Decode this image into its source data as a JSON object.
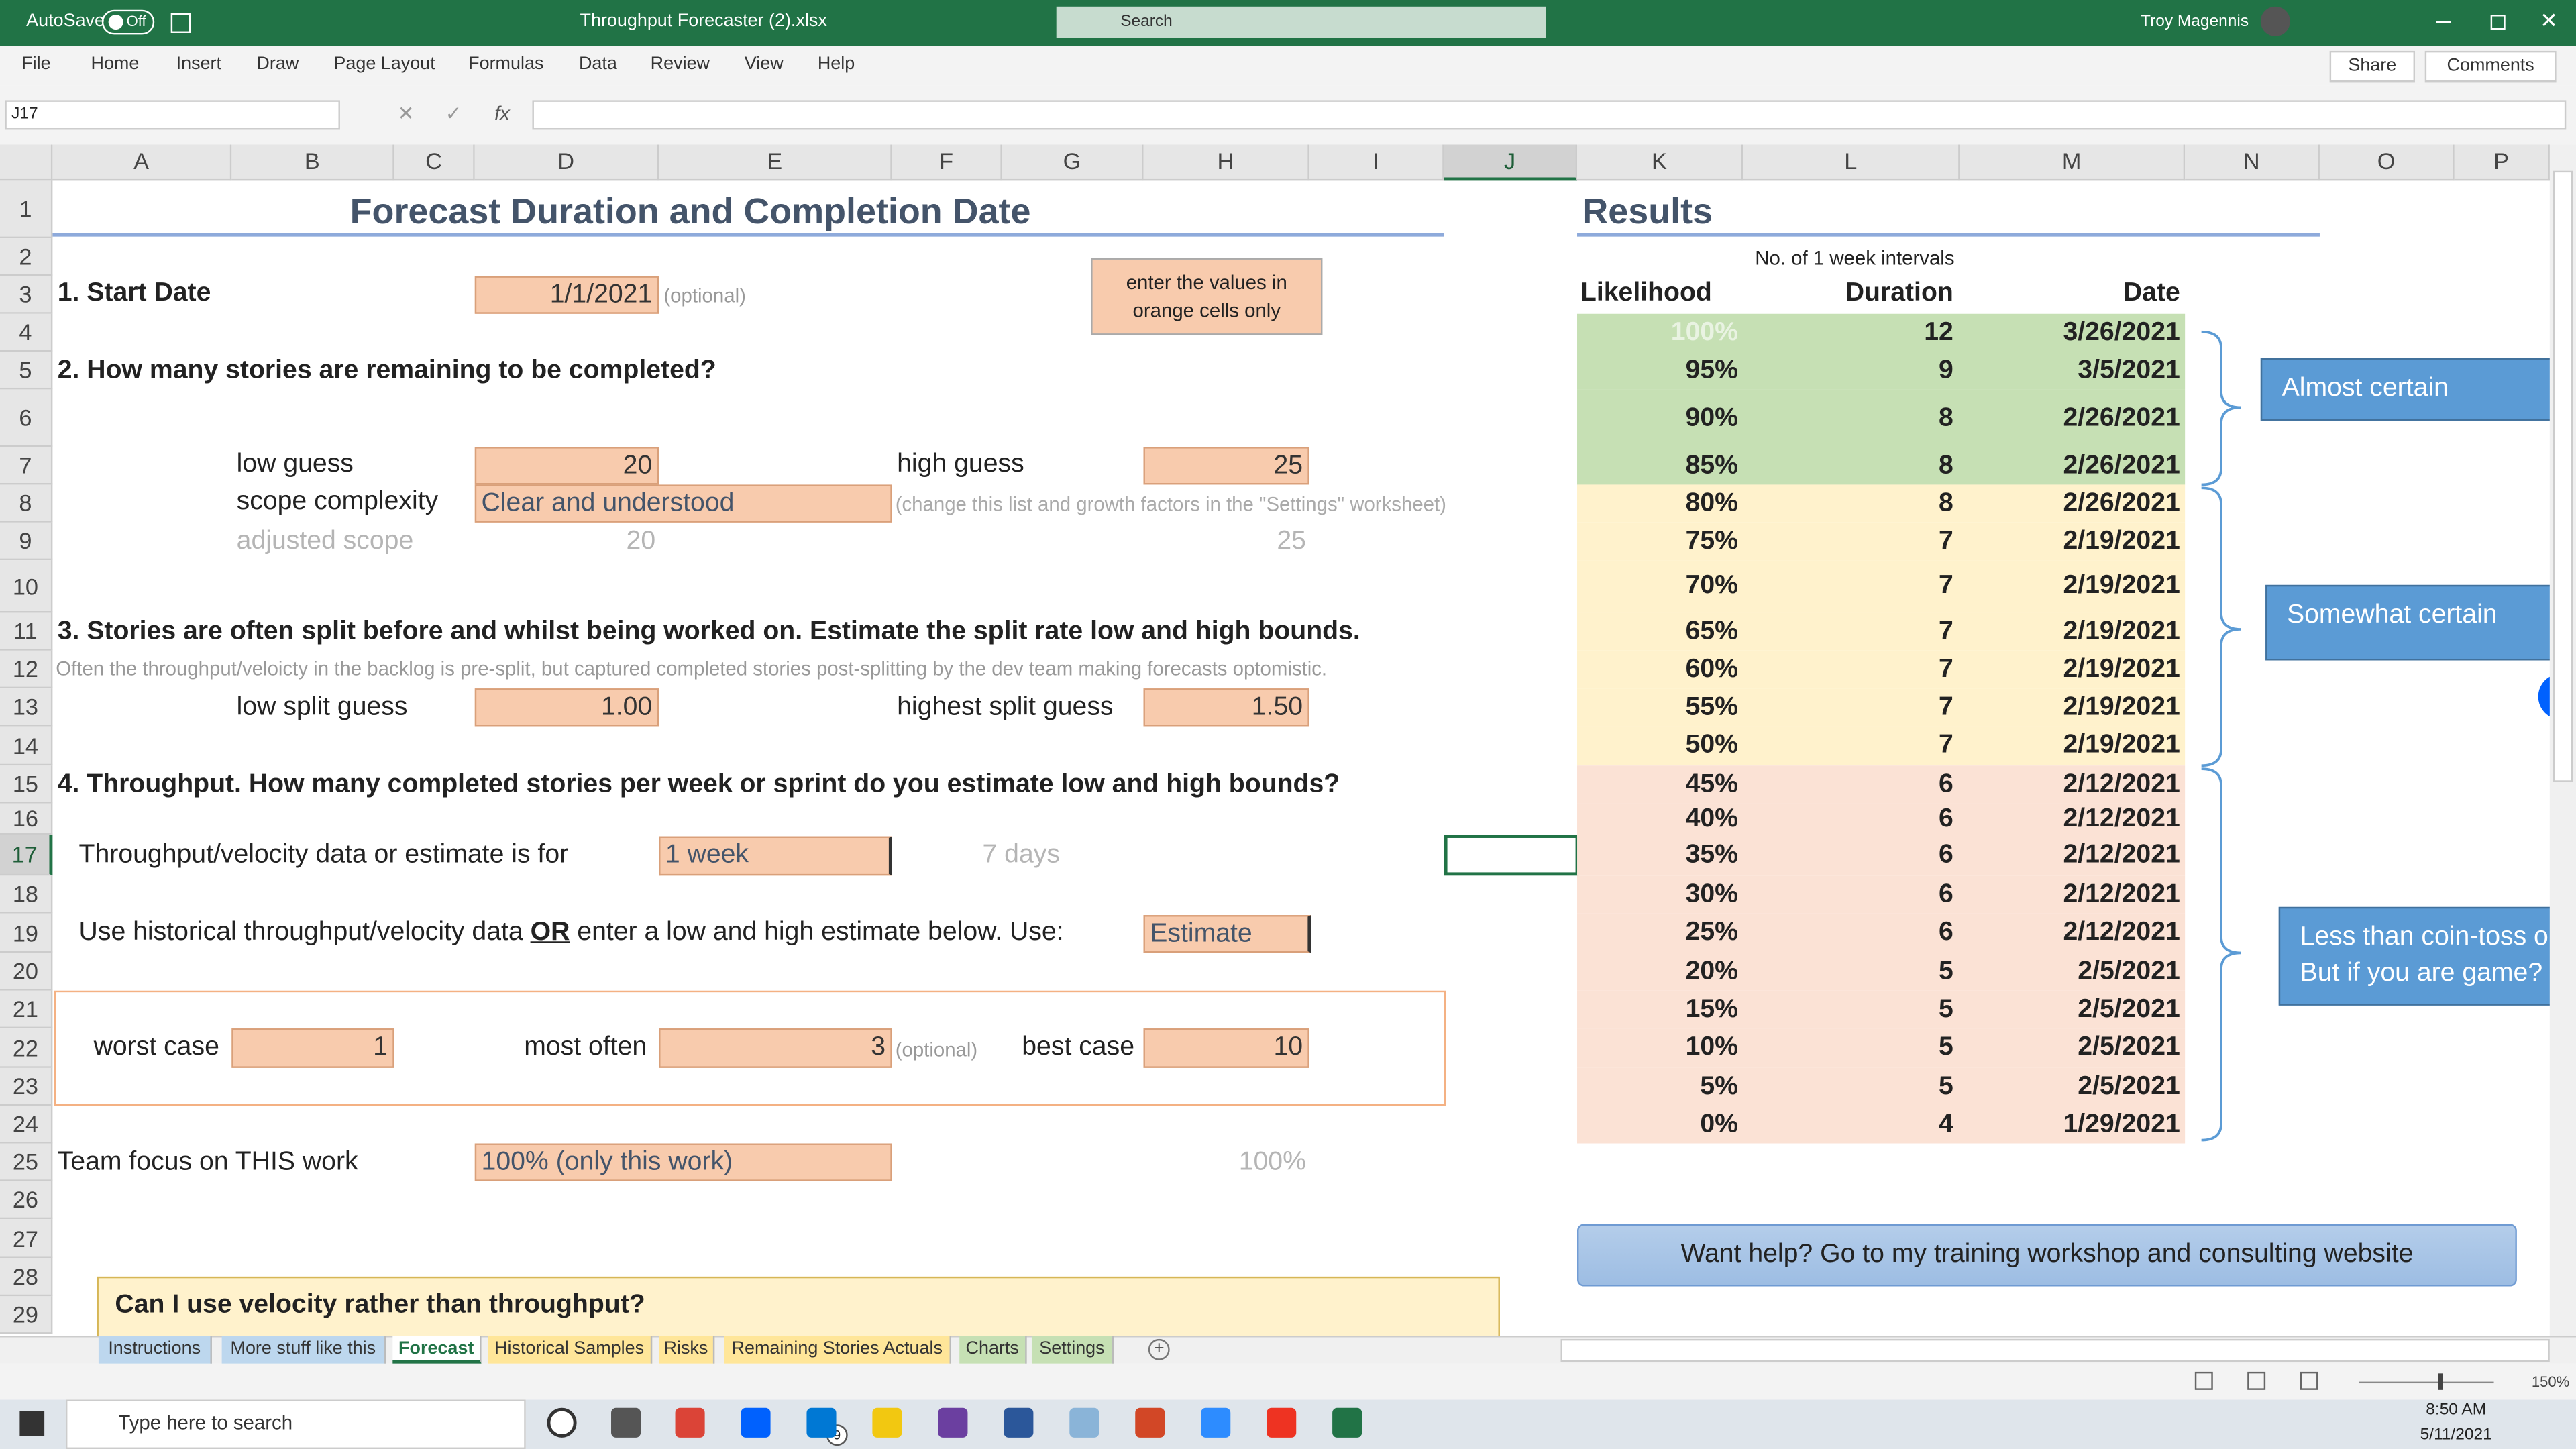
{
  "titlebar": {
    "autosave": "AutoSave",
    "toggle": "Off",
    "filename": "Throughput Forecaster (2).xlsx",
    "search": "Search",
    "user": "Troy Magennis"
  },
  "ribbon": {
    "tabs": [
      "File",
      "Home",
      "Insert",
      "Draw",
      "Page Layout",
      "Formulas",
      "Data",
      "Review",
      "View",
      "Help"
    ],
    "share": "Share",
    "comments": "Comments"
  },
  "formula_bar": {
    "name_box": "J17",
    "fx": "fx"
  },
  "grid": {
    "columns": [
      "A",
      "B",
      "C",
      "D",
      "E",
      "F",
      "G",
      "H",
      "I",
      "J",
      "K",
      "L",
      "M",
      "N",
      "O",
      "P"
    ],
    "rows": [
      1,
      2,
      3,
      4,
      5,
      6,
      7,
      8,
      9,
      10,
      11,
      12,
      13,
      14,
      15,
      16,
      17,
      18,
      19,
      20,
      21,
      22,
      23,
      24,
      25,
      26,
      27,
      28,
      29
    ]
  },
  "forecast": {
    "title": "Forecast Duration and Completion Date",
    "start_label": "1. Start Date",
    "start_date": "1/1/2021",
    "optional": "(optional)",
    "note": [
      "enter the values in",
      "orange cells only"
    ],
    "q2": "2. How many stories are remaining to be completed?",
    "low_guess_label": "low guess",
    "low_guess": 20,
    "high_guess_label": "high guess",
    "high_guess": 25,
    "scope_label": "scope complexity",
    "scope": "Clear and understood",
    "scope_note": "(change this list and growth factors in the \"Settings\" worksheet)",
    "adjusted_label": "adjusted scope",
    "adjusted_low": 20,
    "adjusted_high": 25,
    "q3": "3. Stories are often split before and whilst being worked on. Estimate the split rate low and high bounds.",
    "q3_note": "Often the throughput/veloicty in the backlog is pre-split, but captured completed stories post-splitting by the dev team making forecasts optomistic.",
    "low_split_label": "low split guess",
    "low_split": "1.00",
    "high_split_label": "highest split guess",
    "high_split": "1.50",
    "q4": "4. Throughput. How many completed stories per week or sprint do you estimate low and high bounds?",
    "period_label": "Throughput/velocity data or estimate is for",
    "period": "1 week",
    "period_days": "7 days",
    "use_label_1": "Use historical throughput/velocity data",
    "use_or": "OR",
    "use_label_2": "enter a low and high estimate below. Use:",
    "use_value": "Estimate",
    "worst_label": "worst case",
    "worst": 1,
    "often_label": "most often",
    "often": 3,
    "often_optional": "(optional)",
    "best_label": "best case",
    "best": 10,
    "focus_label": "Team focus on THIS work",
    "focus": "100% (only this work)",
    "focus_value": "100%",
    "callout": "Can I use velocity rather than throughput?"
  },
  "results": {
    "title": "Results",
    "subheader": "No. of 1 week intervals",
    "headers": [
      "Likelihood",
      "Duration",
      "Date"
    ],
    "rows": [
      [
        "100%",
        12,
        "3/26/2021"
      ],
      [
        "95%",
        9,
        "3/5/2021"
      ],
      [
        "90%",
        8,
        "2/26/2021"
      ],
      [
        "85%",
        8,
        "2/26/2021"
      ],
      [
        "80%",
        8,
        "2/26/2021"
      ],
      [
        "75%",
        7,
        "2/19/2021"
      ],
      [
        "70%",
        7,
        "2/19/2021"
      ],
      [
        "65%",
        7,
        "2/19/2021"
      ],
      [
        "60%",
        7,
        "2/19/2021"
      ],
      [
        "55%",
        7,
        "2/19/2021"
      ],
      [
        "50%",
        7,
        "2/19/2021"
      ],
      [
        "45%",
        6,
        "2/12/2021"
      ],
      [
        "40%",
        6,
        "2/12/2021"
      ],
      [
        "35%",
        6,
        "2/12/2021"
      ],
      [
        "30%",
        6,
        "2/12/2021"
      ],
      [
        "25%",
        6,
        "2/12/2021"
      ],
      [
        "20%",
        5,
        "2/5/2021"
      ],
      [
        "15%",
        5,
        "2/5/2021"
      ],
      [
        "10%",
        5,
        "2/5/2021"
      ],
      [
        "5%",
        5,
        "2/5/2021"
      ],
      [
        "0%",
        4,
        "1/29/2021"
      ]
    ],
    "labels": {
      "almost": "Almost certain",
      "somewhat": "Somewhat certain",
      "coin": [
        "Less than coin-toss o",
        "But if you are game?"
      ]
    },
    "help": "Want help? Go to my training workshop and consulting website"
  },
  "sheet_tabs": [
    "Instructions",
    "More stuff like this",
    "Forecast",
    "Historical Samples",
    "Risks",
    "Remaining Stories Actuals",
    "Charts",
    "Settings"
  ],
  "status": {
    "zoom": "150%"
  },
  "taskbar": {
    "search": "Type here to search",
    "mail_badge": "9",
    "time": "8:50 AM",
    "date": "5/11/2021"
  }
}
